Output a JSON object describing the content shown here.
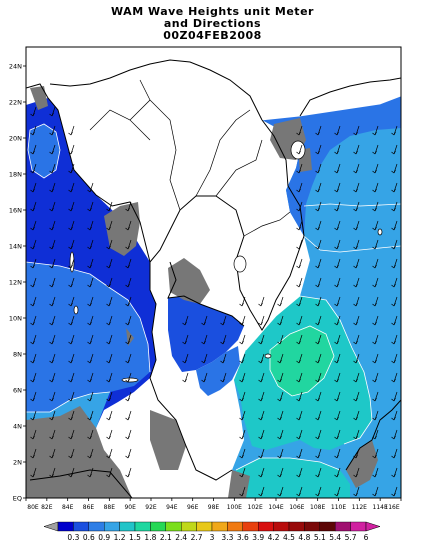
{
  "title": {
    "line1": "WAM Wave Heights unit Meter",
    "line2": "and Directions",
    "line3": "00Z04FEB2008"
  },
  "axes": {
    "y_ticks": [
      "EQ",
      "2N",
      "4N",
      "6N",
      "8N",
      "10N",
      "12N",
      "14N",
      "16N",
      "18N",
      "20N",
      "22N",
      "24N"
    ],
    "x_ticks": [
      "80E",
      "82E",
      "84E",
      "86E",
      "88E",
      "90E",
      "92E",
      "94E",
      "96E",
      "98E",
      "100E",
      "102E",
      "104E",
      "106E",
      "108E",
      "110E",
      "112E",
      "114E",
      "116E"
    ],
    "lat_range": [
      0,
      25
    ],
    "lon_range": [
      80,
      116
    ]
  },
  "legend": {
    "labels": [
      "0.3",
      "0.6",
      "0.9",
      "1.2",
      "1.5",
      "1.8",
      "2.1",
      "2.4",
      "2.7",
      "3",
      "3.3",
      "3.6",
      "3.9",
      "4.2",
      "4.5",
      "4.8",
      "5.1",
      "5.4",
      "5.7",
      "6"
    ],
    "colors": [
      "#0000cc",
      "#1a4fdf",
      "#2e7ee6",
      "#36a4e6",
      "#22c4c8",
      "#1fd7a0",
      "#25d855",
      "#7bde1c",
      "#c0d81a",
      "#e8c81a",
      "#f0a81a",
      "#f07a12",
      "#e8400e",
      "#d81010",
      "#b80c0c",
      "#980a0a",
      "#7a0808",
      "#5c0606",
      "#a01070",
      "#d020a0"
    ]
  },
  "colors": {
    "land": "#ffffff",
    "no_data": "#777777",
    "deep_blue": "#0f2fd6",
    "mid_blue": "#2a74e6",
    "light_blue": "#36a4e6",
    "teal": "#1ec8c8",
    "green": "#21d6a0"
  }
}
